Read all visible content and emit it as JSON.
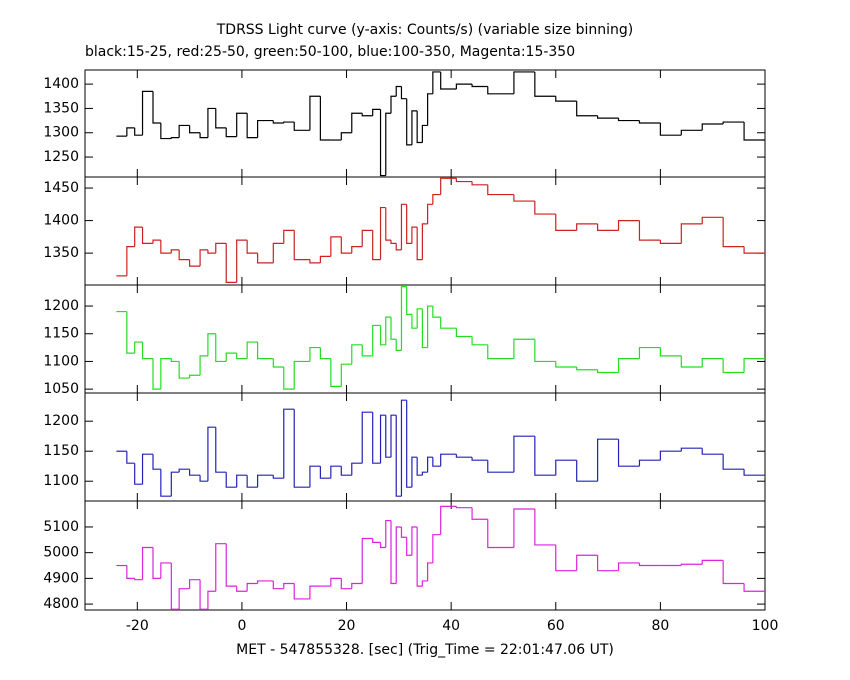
{
  "chart_data": {
    "type": "step",
    "title": "TDRSS Light curve (y-axis: Counts/s) (variable size binning)",
    "subtitle": "black:15-25, red:25-50, green:50-100, blue:100-350, Magenta:15-350",
    "xlabel": "MET - 547855328. [sec] (Trig_Time = 22:01:47.06 UT)",
    "xlim": [
      -30,
      100
    ],
    "xticks": [
      -20,
      0,
      20,
      40,
      60,
      80,
      100
    ],
    "bins": [
      -24,
      -22,
      -20.5,
      -19,
      -17,
      -15.5,
      -13.5,
      -12,
      -10,
      -8,
      -6.5,
      -5,
      -3,
      -1,
      1,
      3,
      6,
      8,
      10,
      13,
      15,
      17,
      19,
      21,
      23,
      25,
      26.5,
      27.5,
      28.5,
      29.5,
      30.5,
      31.5,
      32.5,
      33.5,
      34.5,
      35.5,
      36.5,
      38,
      41,
      44,
      47,
      52,
      56,
      60,
      64,
      68,
      72,
      76,
      80,
      84,
      88,
      92,
      96,
      100
    ],
    "panels": [
      {
        "color": "#000000",
        "ylim": [
          1209,
          1429
        ],
        "yticks": [
          1250,
          1300,
          1350,
          1400
        ],
        "values": [
          1293,
          1310,
          1295,
          1385,
          1320,
          1288,
          1290,
          1315,
          1300,
          1290,
          1350,
          1310,
          1292,
          1340,
          1290,
          1325,
          1320,
          1322,
          1305,
          1375,
          1285,
          1285,
          1300,
          1340,
          1335,
          1348,
          1212,
          1340,
          1375,
          1395,
          1370,
          1275,
          1345,
          1280,
          1315,
          1380,
          1425,
          1390,
          1400,
          1395,
          1380,
          1425,
          1375,
          1365,
          1335,
          1330,
          1325,
          1320,
          1295,
          1305,
          1318,
          1322,
          1285
        ]
      },
      {
        "color": "#cc2222",
        "ylim": [
          1301,
          1467
        ],
        "yticks": [
          1350,
          1400,
          1450
        ],
        "values": [
          1315,
          1360,
          1390,
          1365,
          1370,
          1350,
          1355,
          1340,
          1330,
          1355,
          1350,
          1365,
          1305,
          1370,
          1350,
          1335,
          1365,
          1385,
          1340,
          1335,
          1345,
          1375,
          1350,
          1360,
          1385,
          1340,
          1420,
          1370,
          1365,
          1355,
          1425,
          1365,
          1390,
          1340,
          1395,
          1425,
          1440,
          1465,
          1460,
          1455,
          1440,
          1430,
          1410,
          1385,
          1395,
          1385,
          1400,
          1370,
          1365,
          1395,
          1405,
          1360,
          1350
        ]
      },
      {
        "color": "#22dd22",
        "ylim": [
          1043,
          1238
        ],
        "yticks": [
          1050,
          1100,
          1150,
          1200
        ],
        "values": [
          1190,
          1115,
          1135,
          1105,
          1050,
          1105,
          1100,
          1070,
          1075,
          1110,
          1150,
          1100,
          1115,
          1105,
          1135,
          1105,
          1090,
          1050,
          1100,
          1125,
          1105,
          1055,
          1095,
          1130,
          1110,
          1165,
          1130,
          1180,
          1140,
          1120,
          1235,
          1185,
          1160,
          1195,
          1125,
          1200,
          1180,
          1160,
          1145,
          1130,
          1105,
          1140,
          1100,
          1090,
          1085,
          1080,
          1105,
          1125,
          1110,
          1090,
          1105,
          1080,
          1105
        ]
      },
      {
        "color": "#2222bb",
        "ylim": [
          1067,
          1247
        ],
        "yticks": [
          1100,
          1150,
          1200
        ],
        "values": [
          1150,
          1130,
          1095,
          1145,
          1120,
          1075,
          1115,
          1120,
          1110,
          1100,
          1190,
          1115,
          1090,
          1110,
          1090,
          1110,
          1105,
          1220,
          1090,
          1125,
          1105,
          1125,
          1110,
          1130,
          1215,
          1130,
          1210,
          1140,
          1210,
          1075,
          1235,
          1090,
          1140,
          1110,
          1115,
          1140,
          1125,
          1145,
          1140,
          1135,
          1115,
          1175,
          1110,
          1135,
          1100,
          1170,
          1125,
          1135,
          1150,
          1155,
          1145,
          1120,
          1110
        ]
      },
      {
        "color": "#dd22dd",
        "ylim": [
          4777,
          5201
        ],
        "yticks": [
          4800,
          4900,
          5000,
          5100
        ],
        "values": [
          4950,
          4900,
          4895,
          5020,
          4900,
          4960,
          4780,
          4860,
          4895,
          4780,
          4850,
          5035,
          4870,
          4850,
          4880,
          4890,
          4860,
          4880,
          4820,
          4870,
          4870,
          4900,
          4860,
          4880,
          5055,
          5040,
          5020,
          5125,
          4880,
          5100,
          5060,
          4990,
          5100,
          4870,
          4890,
          4960,
          5070,
          5180,
          5175,
          5130,
          5020,
          5170,
          5030,
          4930,
          4990,
          4930,
          4960,
          4950,
          4950,
          4955,
          4970,
          4880,
          4850
        ]
      }
    ]
  }
}
